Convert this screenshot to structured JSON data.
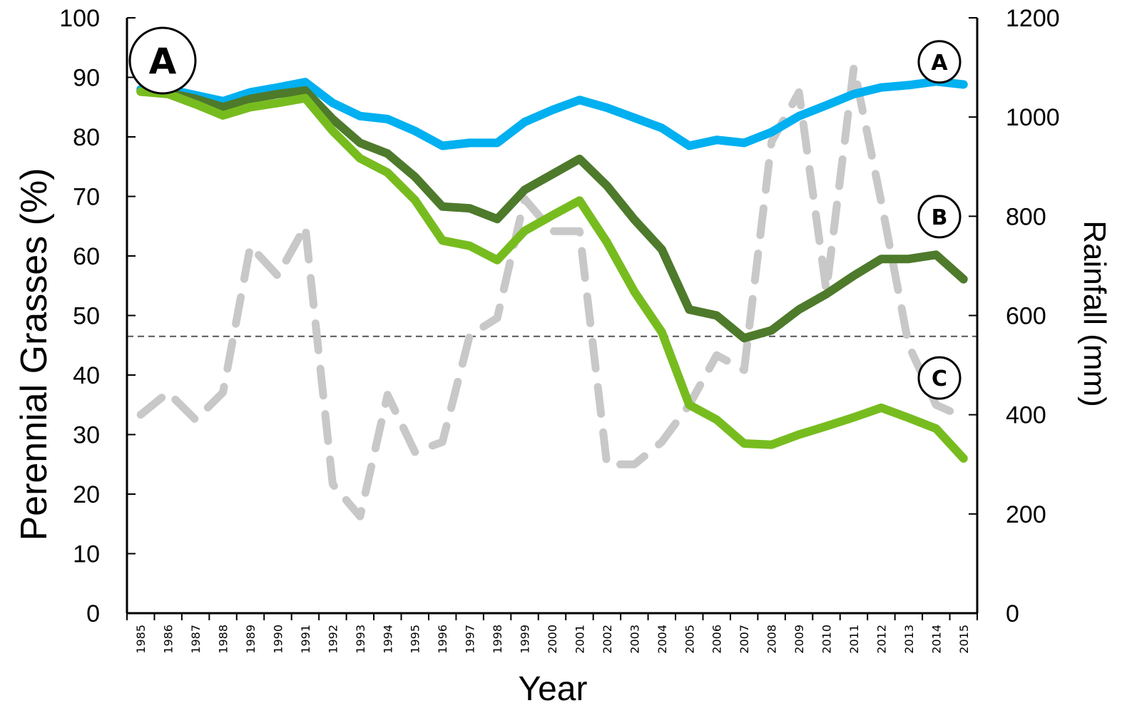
{
  "chart_data": {
    "type": "line",
    "panel_label": "A",
    "xlabel": "Year",
    "ylabel": "Perennial Grasses (%)",
    "y2label": "Rainfall (mm)",
    "ylim": [
      0,
      100
    ],
    "y2lim": [
      0,
      1200
    ],
    "yticks": [
      0,
      10,
      20,
      30,
      40,
      50,
      60,
      70,
      80,
      90,
      100
    ],
    "y2ticks": [
      0,
      200,
      400,
      600,
      800,
      1000,
      1200
    ],
    "x": [
      "1985",
      "1986",
      "1987",
      "1988",
      "1989",
      "1990",
      "1991",
      "1992",
      "1993",
      "1994",
      "1995",
      "1996",
      "1997",
      "1998",
      "1999",
      "2000",
      "2001",
      "2002",
      "2003",
      "2004",
      "2005",
      "2006",
      "2007",
      "2008",
      "2009",
      "2010",
      "2011",
      "2012",
      "2013",
      "2014",
      "2015"
    ],
    "reference_line_y": 46.5,
    "series": [
      {
        "name": "A",
        "axis": "left",
        "color": "#00b0f0",
        "style": "solid",
        "values": [
          88,
          88,
          87,
          86,
          87.5,
          88.3,
          89.2,
          85.7,
          83.5,
          83,
          81,
          78.5,
          79,
          79,
          82.5,
          84.5,
          86.2,
          84.9,
          83.2,
          81.5,
          78.5,
          79.5,
          79,
          80.8,
          83.5,
          85.3,
          87.2,
          88.3,
          88.7,
          89.3,
          88.8
        ]
      },
      {
        "name": "B",
        "axis": "left",
        "color": "#4e7a2b",
        "style": "solid",
        "values": [
          87.6,
          87.4,
          86.4,
          85,
          86.4,
          87.2,
          87.8,
          83,
          79,
          77.2,
          73.3,
          68.3,
          68,
          66.2,
          71.1,
          73.7,
          76.3,
          71.8,
          66.1,
          61.1,
          51,
          50,
          46.2,
          47.5,
          51,
          53.6,
          56.7,
          59.5,
          59.5,
          60.2,
          56.1
        ]
      },
      {
        "name": "C",
        "axis": "left",
        "color": "#77bc1f",
        "style": "solid",
        "values": [
          87.6,
          87.2,
          85.5,
          83.6,
          85,
          85.7,
          86.5,
          81,
          76.4,
          74,
          69.4,
          62.6,
          61.7,
          59.3,
          64.2,
          66.8,
          69.3,
          62.3,
          54,
          47.2,
          35,
          32.5,
          28.5,
          28.3,
          30,
          31.4,
          32.9,
          34.5,
          32.8,
          31,
          26
        ]
      },
      {
        "name": "Rainfall",
        "axis": "right",
        "color": "#c8c8c8",
        "style": "dashed",
        "values": [
          400,
          445,
          390,
          445,
          740,
          680,
          780,
          260,
          195,
          440,
          325,
          345,
          560,
          595,
          835,
          770,
          770,
          300,
          300,
          345,
          420,
          520,
          490,
          950,
          1050,
          650,
          1100,
          830,
          540,
          420,
          395
        ]
      }
    ]
  }
}
